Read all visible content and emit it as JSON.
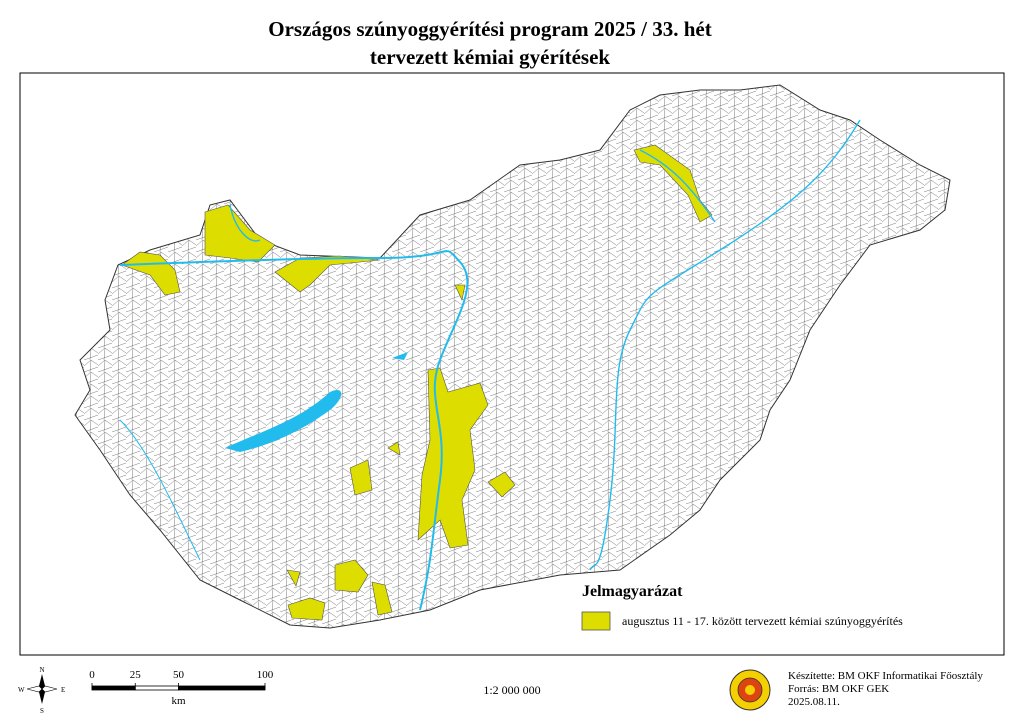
{
  "header": {
    "title": "Országos szúnyoggyérítési program 2025 / 33. hét",
    "subtitle": "tervezett kémiai gyérítések"
  },
  "legend": {
    "title": "Jelmagyarázat",
    "items": [
      {
        "label": "augusztus 11 - 17. között tervezett kémiai szúnyoggyérítés",
        "color": "#dddd00"
      }
    ]
  },
  "compass": {
    "n": "N",
    "s": "S",
    "e": "E",
    "w": "W"
  },
  "scale_bar": {
    "ticks": [
      0,
      25,
      50,
      100
    ],
    "unit": "km"
  },
  "scale": "1:2 000 000",
  "credits": [
    "Készítette: BM OKF Informatikai Főosztály",
    "Forrás: BM OKF GEK",
    "2025.08.11."
  ]
}
